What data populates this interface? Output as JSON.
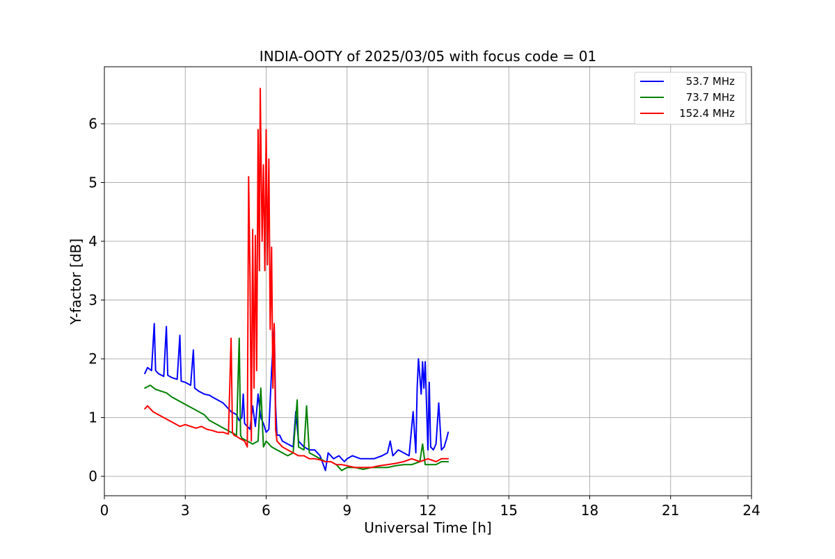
{
  "chart_data": {
    "type": "line",
    "title": "INDIA-OOTY of 2025/03/05 with focus code = 01",
    "xlabel": "Universal Time [h]",
    "ylabel": "Y-factor [dB]",
    "xlim": [
      0,
      24
    ],
    "ylim": [
      -0.33,
      6.97
    ],
    "xticks": [
      0,
      3,
      6,
      9,
      12,
      15,
      18,
      21,
      24
    ],
    "yticks": [
      0,
      1,
      2,
      3,
      4,
      5,
      6
    ],
    "grid": true,
    "legend_position": "top-right",
    "series": [
      {
        "name": "53.7 MHz",
        "color": "#0000ff",
        "x": [
          1.5,
          1.6,
          1.75,
          1.85,
          1.9,
          2.0,
          2.2,
          2.3,
          2.35,
          2.5,
          2.7,
          2.8,
          2.85,
          3.0,
          3.2,
          3.3,
          3.35,
          3.5,
          3.7,
          3.9,
          4.0,
          4.2,
          4.4,
          4.5,
          4.7,
          4.9,
          5.0,
          5.1,
          5.15,
          5.2,
          5.3,
          5.4,
          5.5,
          5.6,
          5.7,
          5.8,
          5.9,
          6.0,
          6.1,
          6.2,
          6.3,
          6.35,
          6.4,
          6.5,
          6.6,
          6.8,
          7.0,
          7.1,
          7.2,
          7.4,
          7.6,
          7.8,
          8.0,
          8.2,
          8.3,
          8.5,
          8.7,
          8.9,
          9.0,
          9.2,
          9.5,
          9.8,
          10.0,
          10.3,
          10.5,
          10.6,
          10.7,
          10.9,
          11.1,
          11.3,
          11.45,
          11.55,
          11.6,
          11.65,
          11.75,
          11.8,
          11.85,
          11.9,
          12.0,
          12.05,
          12.1,
          12.2,
          12.3,
          12.4,
          12.5,
          12.6,
          12.7,
          12.75
        ],
        "values": [
          1.75,
          1.85,
          1.8,
          2.6,
          1.8,
          1.75,
          1.7,
          2.55,
          1.72,
          1.68,
          1.65,
          2.4,
          1.62,
          1.6,
          1.55,
          2.15,
          1.5,
          1.45,
          1.4,
          1.38,
          1.35,
          1.3,
          1.25,
          1.2,
          1.1,
          1.05,
          0.95,
          1.0,
          1.4,
          0.9,
          0.85,
          0.8,
          1.2,
          0.85,
          1.4,
          1.0,
          0.9,
          0.75,
          0.8,
          1.8,
          2.55,
          1.2,
          0.7,
          0.7,
          0.6,
          0.55,
          0.5,
          1.1,
          0.6,
          0.5,
          0.45,
          0.45,
          0.35,
          0.1,
          0.4,
          0.3,
          0.35,
          0.25,
          0.3,
          0.35,
          0.3,
          0.3,
          0.3,
          0.35,
          0.4,
          0.6,
          0.35,
          0.45,
          0.4,
          0.35,
          1.1,
          0.4,
          1.5,
          2.0,
          1.4,
          1.95,
          1.5,
          1.95,
          0.45,
          1.6,
          0.5,
          0.45,
          0.55,
          1.25,
          0.45,
          0.5,
          0.65,
          0.75
        ]
      },
      {
        "name": "73.7 MHz",
        "color": "#008000",
        "x": [
          1.5,
          1.7,
          1.9,
          2.1,
          2.3,
          2.5,
          2.7,
          2.9,
          3.1,
          3.3,
          3.5,
          3.7,
          3.9,
          4.1,
          4.3,
          4.5,
          4.7,
          4.9,
          5.0,
          5.05,
          5.1,
          5.3,
          5.5,
          5.7,
          5.8,
          5.9,
          6.0,
          6.2,
          6.4,
          6.6,
          6.8,
          7.0,
          7.15,
          7.2,
          7.4,
          7.5,
          7.6,
          7.8,
          8.0,
          8.2,
          8.4,
          8.6,
          8.8,
          9.0,
          9.3,
          9.6,
          9.9,
          10.2,
          10.5,
          10.8,
          11.1,
          11.4,
          11.7,
          11.8,
          11.9,
          12.1,
          12.3,
          12.5,
          12.75
        ],
        "values": [
          1.5,
          1.55,
          1.48,
          1.45,
          1.42,
          1.35,
          1.3,
          1.25,
          1.2,
          1.15,
          1.1,
          1.05,
          0.95,
          0.9,
          0.85,
          0.8,
          0.75,
          0.7,
          2.35,
          0.7,
          0.65,
          0.6,
          0.55,
          0.6,
          1.5,
          0.5,
          0.6,
          0.5,
          0.45,
          0.4,
          0.35,
          0.4,
          1.3,
          0.5,
          0.45,
          1.2,
          0.4,
          0.35,
          0.3,
          0.25,
          0.25,
          0.2,
          0.1,
          0.15,
          0.15,
          0.12,
          0.15,
          0.15,
          0.15,
          0.18,
          0.2,
          0.2,
          0.25,
          0.55,
          0.2,
          0.2,
          0.2,
          0.25,
          0.25
        ]
      },
      {
        "name": "152.4 MHz",
        "color": "#ff0000",
        "x": [
          1.5,
          1.6,
          1.8,
          2.0,
          2.2,
          2.4,
          2.6,
          2.8,
          3.0,
          3.2,
          3.4,
          3.6,
          3.8,
          4.0,
          4.2,
          4.4,
          4.6,
          4.7,
          4.75,
          4.8,
          4.9,
          5.0,
          5.2,
          5.3,
          5.35,
          5.4,
          5.45,
          5.5,
          5.55,
          5.6,
          5.65,
          5.7,
          5.75,
          5.78,
          5.8,
          5.85,
          5.9,
          5.95,
          6.0,
          6.05,
          6.1,
          6.15,
          6.2,
          6.25,
          6.3,
          6.35,
          6.4,
          6.5,
          6.6,
          6.8,
          7.0,
          7.2,
          7.4,
          7.6,
          7.8,
          8.0,
          8.2,
          8.4,
          8.6,
          8.8,
          9.0,
          9.3,
          9.6,
          9.9,
          10.2,
          10.5,
          10.8,
          11.1,
          11.4,
          11.7,
          12.0,
          12.3,
          12.5,
          12.75
        ],
        "values": [
          1.15,
          1.2,
          1.1,
          1.05,
          1.0,
          0.95,
          0.9,
          0.85,
          0.88,
          0.85,
          0.82,
          0.85,
          0.8,
          0.78,
          0.75,
          0.75,
          0.72,
          2.35,
          0.75,
          0.7,
          0.68,
          0.65,
          0.6,
          0.5,
          5.1,
          3.4,
          0.6,
          4.2,
          1.5,
          4.1,
          1.8,
          5.9,
          3.5,
          6.6,
          5.8,
          4.0,
          5.3,
          3.5,
          5.9,
          3.6,
          5.4,
          2.5,
          3.9,
          1.5,
          2.6,
          0.8,
          0.6,
          0.55,
          0.5,
          0.45,
          0.4,
          0.35,
          0.35,
          0.3,
          0.3,
          0.28,
          0.25,
          0.25,
          0.2,
          0.2,
          0.18,
          0.15,
          0.15,
          0.15,
          0.18,
          0.2,
          0.22,
          0.25,
          0.3,
          0.25,
          0.3,
          0.25,
          0.3,
          0.3
        ]
      }
    ]
  }
}
